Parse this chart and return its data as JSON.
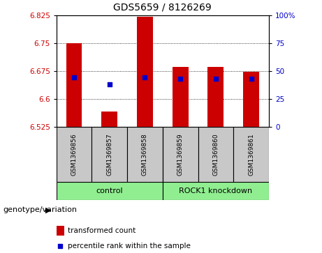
{
  "title": "GDS5659 / 8126269",
  "samples": [
    "GSM1369856",
    "GSM1369857",
    "GSM1369858",
    "GSM1369859",
    "GSM1369860",
    "GSM1369861"
  ],
  "bar_values": [
    6.75,
    6.565,
    6.82,
    6.685,
    6.685,
    6.672
  ],
  "blue_dot_values": [
    6.657,
    6.638,
    6.657,
    6.654,
    6.654,
    6.654
  ],
  "ymin": 6.525,
  "ymax": 6.825,
  "yticks_left": [
    6.525,
    6.6,
    6.675,
    6.75,
    6.825
  ],
  "yticks_right": [
    0,
    25,
    50,
    75,
    100
  ],
  "bar_color": "#cc0000",
  "dot_color": "#0000cc",
  "bar_width": 0.45,
  "legend_bar_label": "transformed count",
  "legend_dot_label": "percentile rank within the sample",
  "xlabel_left": "genotype/variation",
  "tick_label_color_left": "#cc0000",
  "tick_label_color_right": "#0000cc",
  "sample_box_color": "#c8c8c8",
  "group_box_color": "#90ee90",
  "grid_lines": [
    6.75,
    6.675,
    6.6
  ],
  "control_label": "control",
  "knockdown_label": "ROCK1 knockdown"
}
